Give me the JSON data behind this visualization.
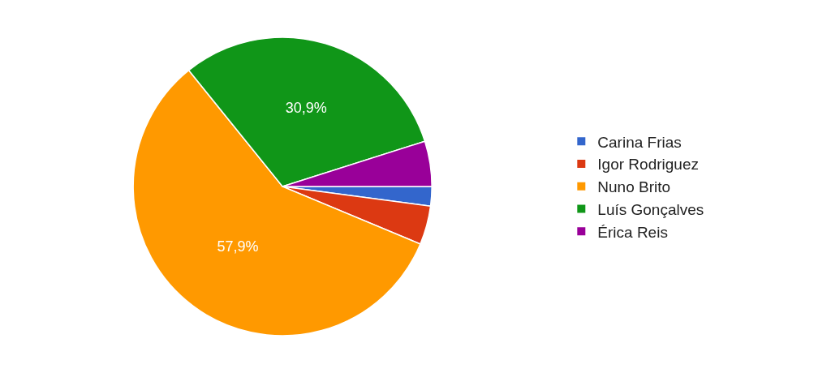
{
  "chart_data": {
    "type": "pie",
    "categories": [
      "Carina Frias",
      "Igor Rodriguez",
      "Nuno Brito",
      "Luís Gonçalves",
      "Érica Reis"
    ],
    "values": [
      2.1,
      4.2,
      57.9,
      30.9,
      4.9
    ],
    "colors": [
      "#3366cc",
      "#dc3912",
      "#ff9900",
      "#109618",
      "#990099"
    ],
    "value_labels": [
      null,
      null,
      "57,9%",
      "30,9%",
      null
    ],
    "legend": "right"
  }
}
